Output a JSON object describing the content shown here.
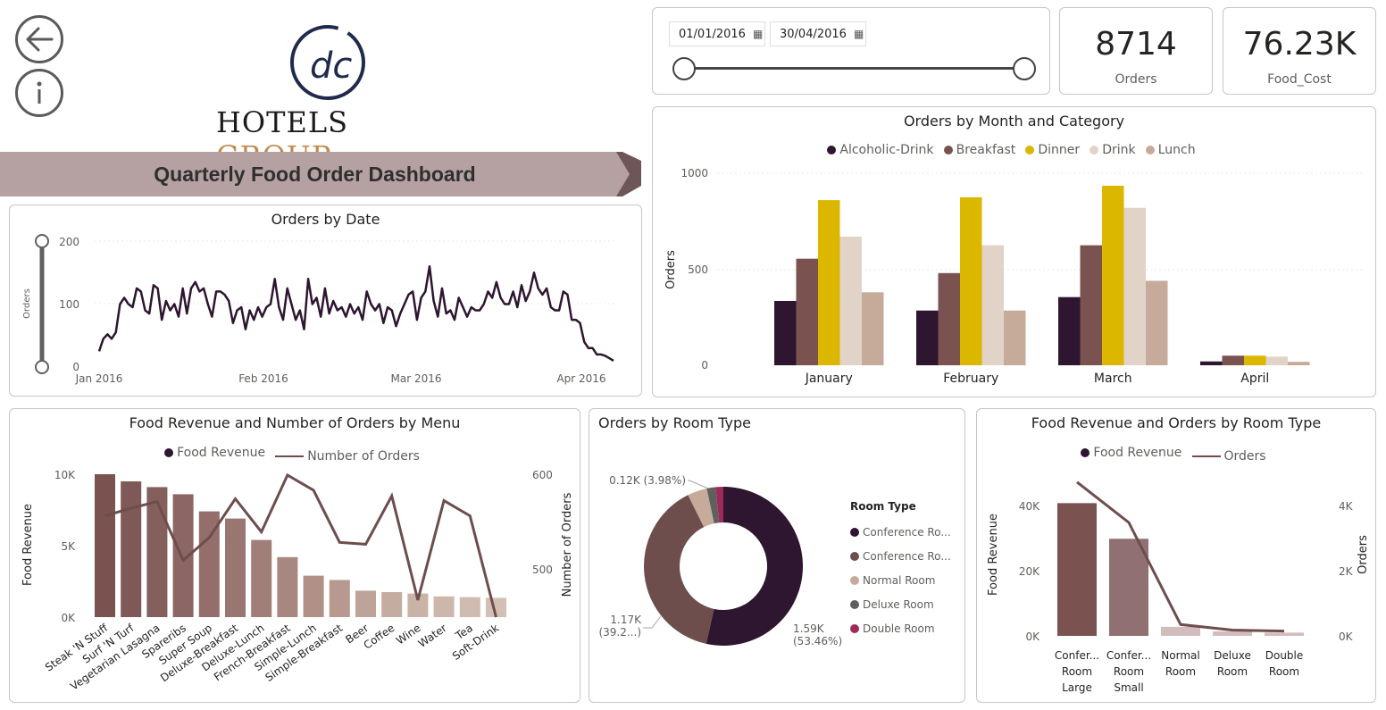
{
  "nav": {
    "back_icon": "arrow-left-icon",
    "info_icon": "info-icon"
  },
  "logo": {
    "monogram": "dc",
    "line1": "HOTELS",
    "line2": "GROUP"
  },
  "banner": {
    "title": "Quarterly Food Order Dashboard",
    "color": "#b5a0a2"
  },
  "date_slicer": {
    "start": "01/01/2016",
    "end": "30/04/2016"
  },
  "kpis": [
    {
      "value": "8714",
      "label": "Orders"
    },
    {
      "value": "76.23K",
      "label": "Food_Cost"
    }
  ],
  "colors": {
    "alcoholic": "#2e1530",
    "breakfast": "#7a5250",
    "dinner": "#dbb700",
    "drink": "#e2d3c9",
    "lunch": "#c7ab9a",
    "line": "#2e1530",
    "menu_line": "#6e4d4d"
  },
  "orders_by_date": {
    "title": "Orders by Date",
    "ylabel": "Orders",
    "yticks": [
      "200",
      "100",
      "0"
    ],
    "xticks": [
      "Jan 2016",
      "Feb 2016",
      "Mar 2016",
      "Apr 2016"
    ],
    "chart_data": {
      "type": "line",
      "x": "daily 2016-01-01 to 2016-04-30",
      "ylim": [
        0,
        200
      ],
      "values": [
        25,
        45,
        52,
        45,
        55,
        100,
        110,
        100,
        95,
        125,
        120,
        90,
        85,
        130,
        125,
        75,
        105,
        90,
        100,
        80,
        125,
        85,
        125,
        135,
        120,
        125,
        100,
        80,
        120,
        120,
        115,
        105,
        70,
        90,
        95,
        60,
        90,
        75,
        95,
        80,
        95,
        100,
        140,
        95,
        75,
        125,
        100,
        75,
        90,
        60,
        140,
        100,
        110,
        80,
        125,
        85,
        105,
        90,
        95,
        80,
        100,
        85,
        95,
        75,
        120,
        100,
        90,
        100,
        70,
        95,
        90,
        65,
        85,
        100,
        115,
        120,
        75,
        110,
        120,
        160,
        105,
        80,
        125,
        85,
        90,
        75,
        110,
        95,
        80,
        95,
        90,
        90,
        100,
        120,
        110,
        135,
        110,
        100,
        100,
        120,
        95,
        130,
        105,
        120,
        150,
        125,
        115,
        125,
        95,
        90,
        90,
        120,
        115,
        75,
        75,
        70,
        40,
        30,
        30,
        20,
        20,
        18,
        14,
        10
      ]
    }
  },
  "orders_by_month": {
    "title": "Orders by Month and Category",
    "ylabel": "Orders",
    "yticks": [
      "1000",
      "500",
      "0"
    ],
    "legend": [
      "Alcoholic-Drink",
      "Breakfast",
      "Dinner",
      "Drink",
      "Lunch"
    ],
    "chart_data": {
      "type": "bar",
      "categories": [
        "January",
        "February",
        "March",
        "April"
      ],
      "ylim": [
        0,
        1000
      ],
      "series": [
        {
          "name": "Alcoholic-Drink",
          "values": [
            335,
            285,
            355,
            20
          ]
        },
        {
          "name": "Breakfast",
          "values": [
            555,
            480,
            625,
            50
          ]
        },
        {
          "name": "Dinner",
          "values": [
            860,
            875,
            935,
            50
          ]
        },
        {
          "name": "Drink",
          "values": [
            670,
            625,
            820,
            45
          ]
        },
        {
          "name": "Lunch",
          "values": [
            380,
            285,
            440,
            18
          ]
        }
      ]
    }
  },
  "revenue_by_menu": {
    "title": "Food Revenue and Number of Orders by Menu",
    "legend": [
      "Food Revenue",
      "Number of Orders"
    ],
    "ylabel_left": "Food Revenue",
    "ylabel_right": "Number of Orders",
    "yticks_left": [
      "10K",
      "5K",
      "0K"
    ],
    "yticks_right": [
      "600",
      "500"
    ],
    "chart_data": {
      "type": "bar",
      "categories": [
        "Steak 'N Stuff",
        "Surf 'N Turf",
        "Vegetarian Lasagna",
        "Spareribs",
        "Super Soup",
        "Deluxe-Breakfast",
        "Deluxe-Lunch",
        "French-Breakfast",
        "Simple-Lunch",
        "Simple-Breakfast",
        "Beer",
        "Coffee",
        "Wine",
        "Water",
        "Tea",
        "Soft-Drink"
      ],
      "series": [
        {
          "name": "Food Revenue",
          "values": [
            10000,
            9500,
            9100,
            8600,
            7400,
            6900,
            5400,
            4200,
            2900,
            2600,
            1850,
            1750,
            1650,
            1450,
            1400,
            1350
          ]
        },
        {
          "name": "Number of Orders",
          "values": [
            557,
            565,
            572,
            510,
            534,
            575,
            540,
            600,
            584,
            529,
            527,
            578,
            468,
            573,
            557,
            450
          ]
        }
      ],
      "ylim_left": [
        0,
        10000
      ],
      "ylim_right": [
        450,
        600
      ]
    }
  },
  "orders_by_room": {
    "title": "Orders by Room Type",
    "legend_title": "Room Type",
    "legend": [
      "Conference Ro...",
      "Conference Ro...",
      "Normal Room",
      "Deluxe Room",
      "Double Room"
    ],
    "slice_colors": [
      "#2e1530",
      "#6e4d4d",
      "#c7ab9a",
      "#5f5f5f",
      "#9e2a5a"
    ],
    "labels": [
      {
        "text1": "1.59K",
        "text2": "(53.46%)"
      },
      {
        "text1": "1.17K",
        "text2": "(39.2...)"
      },
      {
        "text1": "0.12K (3.98%)",
        "text2": ""
      }
    ],
    "chart_data": {
      "type": "pie",
      "categories": [
        "Conference Room Large",
        "Conference Room Small",
        "Normal Room",
        "Deluxe Room",
        "Double Room"
      ],
      "values": [
        53.46,
        39.2,
        3.98,
        1.8,
        1.56
      ]
    }
  },
  "revenue_by_room": {
    "title": "Food Revenue and Orders by Room Type",
    "legend": [
      "Food Revenue",
      "Orders"
    ],
    "ylabel_left": "Food Revenue",
    "ylabel_right": "Orders",
    "yticks_left": [
      "40K",
      "20K",
      "0K"
    ],
    "yticks_right": [
      "4K",
      "2K",
      "0K"
    ],
    "categories_display": [
      [
        "Confer...",
        "Room",
        "Large"
      ],
      [
        "Confer...",
        "Room",
        "Small"
      ],
      [
        "Normal",
        "Room"
      ],
      [
        "Deluxe",
        "Room"
      ],
      [
        "Double",
        "Room"
      ]
    ],
    "chart_data": {
      "type": "bar",
      "categories": [
        "Conference Room Large",
        "Conference Room Small",
        "Normal Room",
        "Deluxe Room",
        "Double Room"
      ],
      "series": [
        {
          "name": "Food Revenue",
          "values": [
            41000,
            30000,
            2800,
            1400,
            1000
          ]
        },
        {
          "name": "Orders",
          "values": [
            4750,
            3500,
            350,
            180,
            150
          ]
        }
      ],
      "ylim_left": [
        0,
        45000
      ],
      "ylim_right": [
        0,
        4500
      ]
    }
  }
}
